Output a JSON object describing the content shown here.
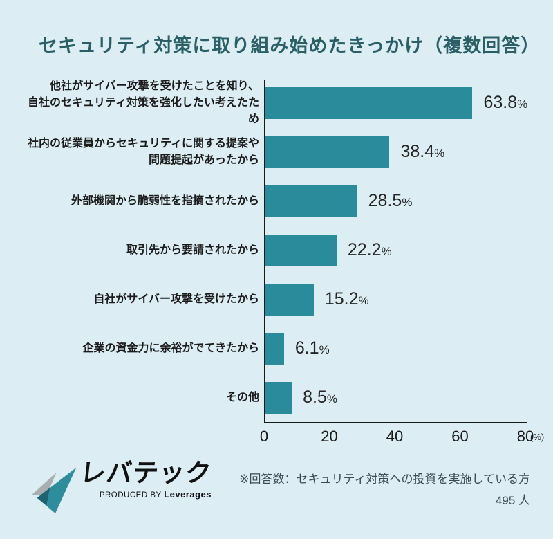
{
  "title": "セキュリティ対策に取り組み始めたきっかけ（複数回答）",
  "colors": {
    "background": "#dcedf4",
    "bar": "#2a8b9a",
    "title": "#2b5f66",
    "axis": "#1a1a1a",
    "note_text": "#3c4a52"
  },
  "chart_data": {
    "type": "bar",
    "orientation": "horizontal",
    "title": "セキュリティ対策に取り組み始めたきっかけ（複数回答）",
    "categories": [
      [
        "他社がサイバー攻撃を受けたことを知り、",
        "自社のセキュリティ対策を強化したい考えたため"
      ],
      [
        "社内の従業員からセキュリティに関する提案や",
        "問題提起があったから"
      ],
      [
        "外部機関から脆弱性を指摘されたから"
      ],
      [
        "取引先から要請されたから"
      ],
      [
        "自社がサイバー攻撃を受けたから"
      ],
      [
        "企業の資金力に余裕がでてきたから"
      ],
      [
        "その他"
      ]
    ],
    "values": [
      63.8,
      38.4,
      28.5,
      22.2,
      15.2,
      6.1,
      8.5
    ],
    "value_labels": [
      "63.8%",
      "38.4%",
      "28.5%",
      "22.2%",
      "15.2%",
      "6.1%",
      "8.5%"
    ],
    "value_unit": "%",
    "xlim": [
      0,
      80
    ],
    "x_ticks": [
      0,
      20,
      40,
      60,
      80
    ],
    "x_unit": "(%)",
    "grid": false,
    "legend": false
  },
  "footer": {
    "logo_text": "レバテック",
    "logo_subtext_prefix": "PRODUCED BY",
    "logo_subtext_brand": "Leverages",
    "note_line1": "※回答数：セキュリティ対策への投資を実施している方",
    "note_line2": "495 人"
  }
}
